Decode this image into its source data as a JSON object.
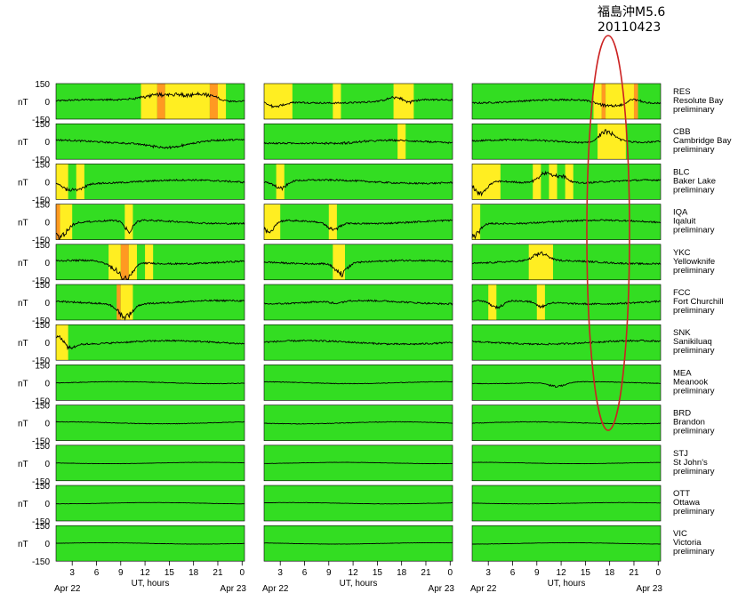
{
  "annotation": {
    "line1": "福島沖M5.6",
    "line2": "20110423"
  },
  "chart_data": {
    "type": "line",
    "y_unit_label": "nT",
    "ylim": [
      -150,
      150
    ],
    "yticks": [
      150,
      0,
      -150
    ],
    "x_tick_hours": [
      3,
      6,
      9,
      12,
      15,
      18,
      21,
      0
    ],
    "xlabel": "UT, hours",
    "date_start_label": "Apr 22",
    "date_end_label": "Apr 23",
    "colors": {
      "quiet": "#33dd22",
      "active": "#ffee22",
      "storm": "#ff9922",
      "trace": "#000000",
      "annotation": "#cc2222"
    },
    "stations": [
      {
        "code": "RES",
        "name": "Resolute Bay",
        "status": "preliminary"
      },
      {
        "code": "CBB",
        "name": "Cambridge Bay",
        "status": "preliminary"
      },
      {
        "code": "BLC",
        "name": "Baker Lake",
        "status": "preliminary"
      },
      {
        "code": "IQA",
        "name": "Iqaluit",
        "status": "preliminary"
      },
      {
        "code": "YKC",
        "name": "Yellowknife",
        "status": "preliminary"
      },
      {
        "code": "FCC",
        "name": "Fort Churchill",
        "status": "preliminary"
      },
      {
        "code": "SNK",
        "name": "Sanikiluaq",
        "status": "preliminary"
      },
      {
        "code": "MEA",
        "name": "Meanook",
        "status": "preliminary"
      },
      {
        "code": "BRD",
        "name": "Brandon",
        "status": "preliminary"
      },
      {
        "code": "STJ",
        "name": "St John's",
        "status": "preliminary"
      },
      {
        "code": "OTT",
        "name": "Ottawa",
        "status": "preliminary"
      },
      {
        "code": "VIC",
        "name": "Victoria",
        "status": "preliminary"
      }
    ],
    "activity": [
      [
        [
          [
            11.5,
            13.5,
            "y"
          ],
          [
            13.5,
            14.5,
            "o"
          ],
          [
            14.5,
            20,
            "y"
          ],
          [
            20,
            21,
            "o"
          ],
          [
            21,
            22,
            "y"
          ]
        ],
        [
          [
            1,
            4.5,
            "y"
          ],
          [
            9.5,
            10.5,
            "y"
          ],
          [
            17,
            19.5,
            "y"
          ]
        ],
        [
          [
            16,
            17,
            "y"
          ],
          [
            17,
            17.5,
            "o"
          ],
          [
            17.5,
            21,
            "y"
          ],
          [
            21,
            21.5,
            "o"
          ]
        ]
      ],
      [
        [],
        [
          [
            17.5,
            18.5,
            "y"
          ]
        ],
        [
          [
            16.5,
            20,
            "y"
          ]
        ]
      ],
      [
        [
          [
            1,
            2.5,
            "y"
          ],
          [
            3.5,
            4.5,
            "y"
          ]
        ],
        [
          [
            2.5,
            3.5,
            "y"
          ]
        ],
        [
          [
            1,
            4.5,
            "y"
          ],
          [
            8.5,
            9.5,
            "y"
          ],
          [
            10.5,
            11.5,
            "y"
          ],
          [
            12.5,
            13.5,
            "y"
          ]
        ]
      ],
      [
        [
          [
            1,
            1.5,
            "o"
          ],
          [
            1.5,
            3,
            "y"
          ],
          [
            9.5,
            10.5,
            "y"
          ]
        ],
        [
          [
            1,
            3,
            "y"
          ],
          [
            9,
            10,
            "y"
          ]
        ],
        [
          [
            1,
            2,
            "y"
          ]
        ]
      ],
      [
        [
          [
            7.5,
            9,
            "y"
          ],
          [
            9,
            10,
            "o"
          ],
          [
            10,
            11,
            "y"
          ],
          [
            12,
            13,
            "y"
          ]
        ],
        [
          [
            9.5,
            11,
            "y"
          ]
        ],
        [
          [
            8,
            11,
            "y"
          ]
        ]
      ],
      [
        [
          [
            8.5,
            9,
            "o"
          ],
          [
            9,
            10.5,
            "y"
          ]
        ],
        [],
        [
          [
            3,
            4,
            "y"
          ],
          [
            9,
            10,
            "y"
          ]
        ]
      ],
      [
        [
          [
            1,
            2.5,
            "y"
          ]
        ],
        [],
        []
      ],
      [
        [],
        [],
        []
      ],
      [
        [],
        [],
        []
      ],
      [
        [],
        [],
        []
      ],
      [
        [],
        [],
        []
      ],
      [
        [],
        [],
        []
      ]
    ],
    "disturbances": [
      [
        [
          [
            14,
            3.2,
            60
          ],
          [
            18,
            2.5,
            50
          ],
          [
            20,
            1.5,
            40
          ]
        ],
        [
          [
            2.5,
            1.5,
            -45
          ],
          [
            17.5,
            1.5,
            30
          ],
          [
            18.8,
            1,
            -30
          ]
        ],
        [
          [
            18,
            2,
            -45
          ],
          [
            21,
            1,
            30
          ]
        ]
      ],
      [
        [
          [
            15,
            3,
            -40
          ]
        ],
        [
          [
            11,
            4,
            -20
          ]
        ],
        [
          [
            17.5,
            1.2,
            70
          ],
          [
            18.5,
            2,
            30
          ]
        ]
      ],
      [
        [
          [
            2.5,
            1.2,
            -50
          ],
          [
            4,
            1,
            -35
          ]
        ],
        [
          [
            3,
            1,
            -60
          ]
        ],
        [
          [
            2,
            1.2,
            -100
          ],
          [
            10,
            1.2,
            80
          ],
          [
            12,
            1.2,
            60
          ]
        ]
      ],
      [
        [
          [
            1.5,
            1.2,
            -120
          ],
          [
            10,
            0.8,
            -90
          ]
        ],
        [
          [
            1.5,
            1,
            -100
          ],
          [
            9.5,
            1,
            -60
          ]
        ],
        [
          [
            1.2,
            1,
            -120
          ]
        ]
      ],
      [
        [
          [
            8.5,
            1.5,
            -60
          ],
          [
            9.8,
            1,
            -120
          ]
        ],
        [
          [
            10.5,
            1,
            -90
          ]
        ],
        [
          [
            9.5,
            1.2,
            60
          ]
        ]
      ],
      [
        [
          [
            9.5,
            1.2,
            -110
          ]
        ],
        [
          [
            10,
            1,
            -20
          ]
        ],
        [
          [
            4,
            1,
            -60
          ],
          [
            9.5,
            0.8,
            -40
          ]
        ]
      ],
      [
        [
          [
            1.5,
            1,
            70
          ],
          [
            2.5,
            1,
            -50
          ]
        ],
        [],
        []
      ],
      [
        [],
        [],
        [
          [
            11.5,
            1.5,
            -35
          ]
        ]
      ],
      [
        [],
        [],
        []
      ],
      [
        [],
        [],
        []
      ],
      [
        [],
        [],
        []
      ],
      [
        [],
        [],
        []
      ]
    ]
  }
}
